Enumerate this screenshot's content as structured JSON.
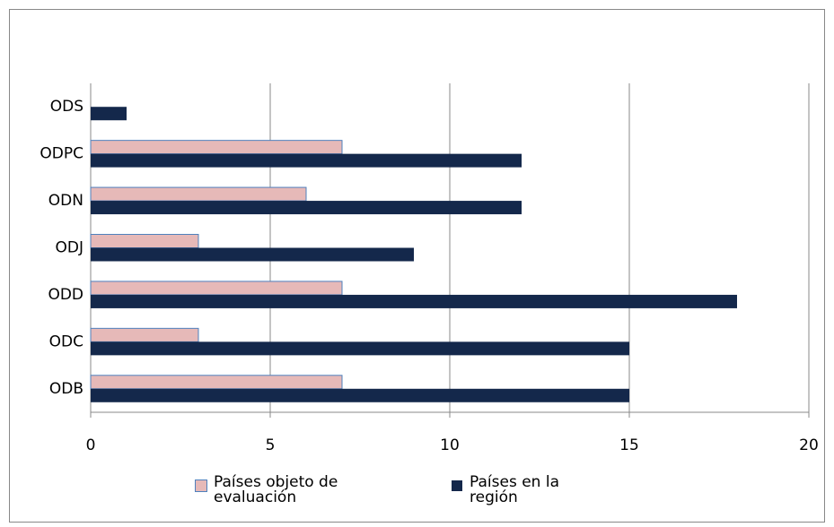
{
  "chart_data": {
    "type": "hbar",
    "categories": [
      "ODB",
      "ODC",
      "ODD",
      "ODJ",
      "ODN",
      "ODPC",
      "ODS"
    ],
    "series": [
      {
        "name": "Países objeto de evaluación",
        "color": "#e6b9b8",
        "values": [
          7,
          3,
          7,
          3,
          6,
          7,
          null
        ]
      },
      {
        "name": "Países en la región",
        "color": "#14284b",
        "values": [
          15,
          15,
          18,
          9,
          12,
          12,
          1
        ]
      }
    ],
    "xlim": [
      0,
      20
    ],
    "xticks": [
      0,
      5,
      10,
      15,
      20
    ],
    "grid": true,
    "legend": "bottom"
  }
}
